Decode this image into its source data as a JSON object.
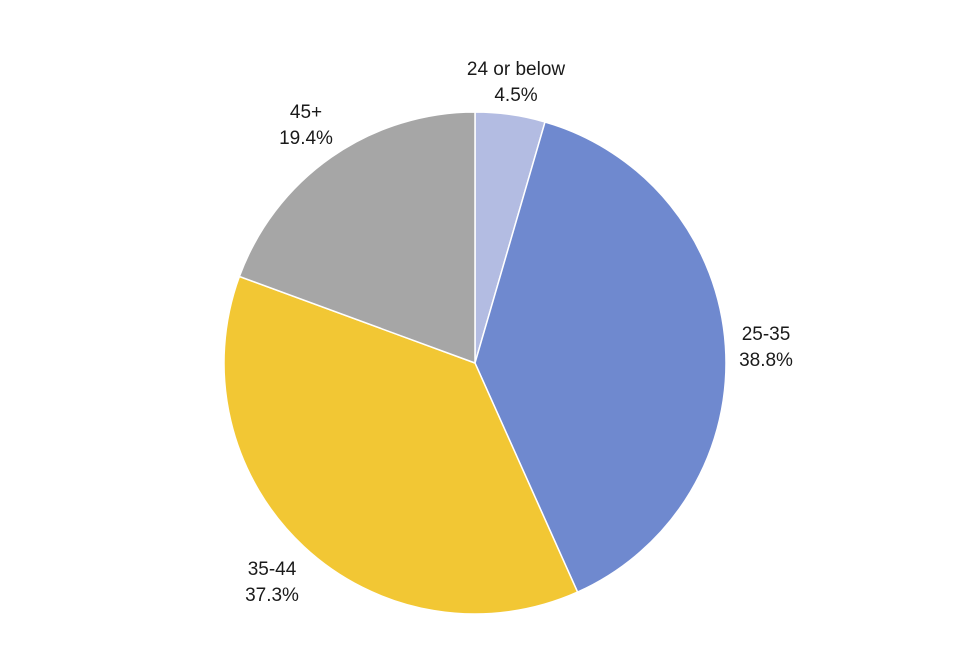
{
  "chart_data": {
    "type": "pie",
    "slices": [
      {
        "label": "24 or below",
        "value": 4.5,
        "value_label": "4.5%",
        "color": "#b3bce2"
      },
      {
        "label": "25-35",
        "value": 38.8,
        "value_label": "38.8%",
        "color": "#6f89cf"
      },
      {
        "label": "35-44",
        "value": 37.3,
        "value_label": "37.3%",
        "color": "#f2c734"
      },
      {
        "label": "45+",
        "value": 19.4,
        "value_label": "19.4%",
        "color": "#a6a6a6"
      }
    ],
    "start_angle": "12 o'clock",
    "direction": "clockwise",
    "legend": "none"
  }
}
